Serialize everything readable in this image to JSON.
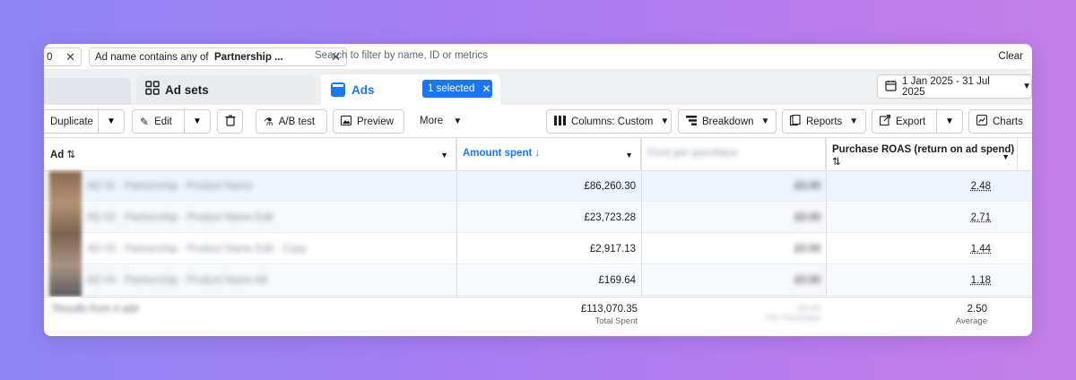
{
  "filter_bar": {
    "chip_partial_label": "0",
    "chip_filter_prefix": "Ad name contains any of",
    "chip_filter_value": "Partnership ...",
    "search_placeholder": "Search to filter by name, ID or metrics",
    "clear_label": "Clear"
  },
  "tabs": {
    "adsets_label": "Ad sets",
    "ads_label": "Ads",
    "selected_badge": "1 selected",
    "date_range": "1 Jan 2025 - 31 Jul 2025"
  },
  "toolbar": {
    "duplicate_label": "Duplicate",
    "edit_label": "Edit",
    "abtest_label": "A/B test",
    "preview_label": "Preview",
    "more_label": "More",
    "columns_label": "Columns: Custom",
    "breakdown_label": "Breakdown",
    "reports_label": "Reports",
    "export_label": "Export",
    "charts_label": "Charts"
  },
  "table": {
    "headers": {
      "ad": "Ad",
      "amount_spent": "Amount spent",
      "hidden_metric": "Cost per purchase",
      "roas": "Purchase ROAS (return on ad spend)"
    },
    "rows": [
      {
        "name": "AD 01 · Partnership · Product Name",
        "amount": "£86,260.30",
        "mid": "£0.00",
        "roas": "2.48"
      },
      {
        "name": "AD 02 · Partnership · Product Name Edit",
        "amount": "£23,723.28",
        "mid": "£0.00",
        "roas": "2.71"
      },
      {
        "name": "AD 03 · Partnership · Product Name Edit · Copy",
        "amount": "£2,917.13",
        "mid": "£0.00",
        "roas": "1.44"
      },
      {
        "name": "AD 04 · Partnership · Product Name Alt",
        "amount": "£169.64",
        "mid": "£0.00",
        "roas": "1.18"
      }
    ],
    "summary": {
      "label": "Results from 4 ads",
      "amount": "£113,070.35",
      "amount_sub": "Total Spent",
      "mid": "£0.00",
      "mid_sub": "Per Purchase",
      "roas": "2.50",
      "roas_sub": "Average"
    }
  },
  "colors": {
    "accent": "#1877f2",
    "background_left": "#8f86f2",
    "background_right": "#c57ee8"
  }
}
